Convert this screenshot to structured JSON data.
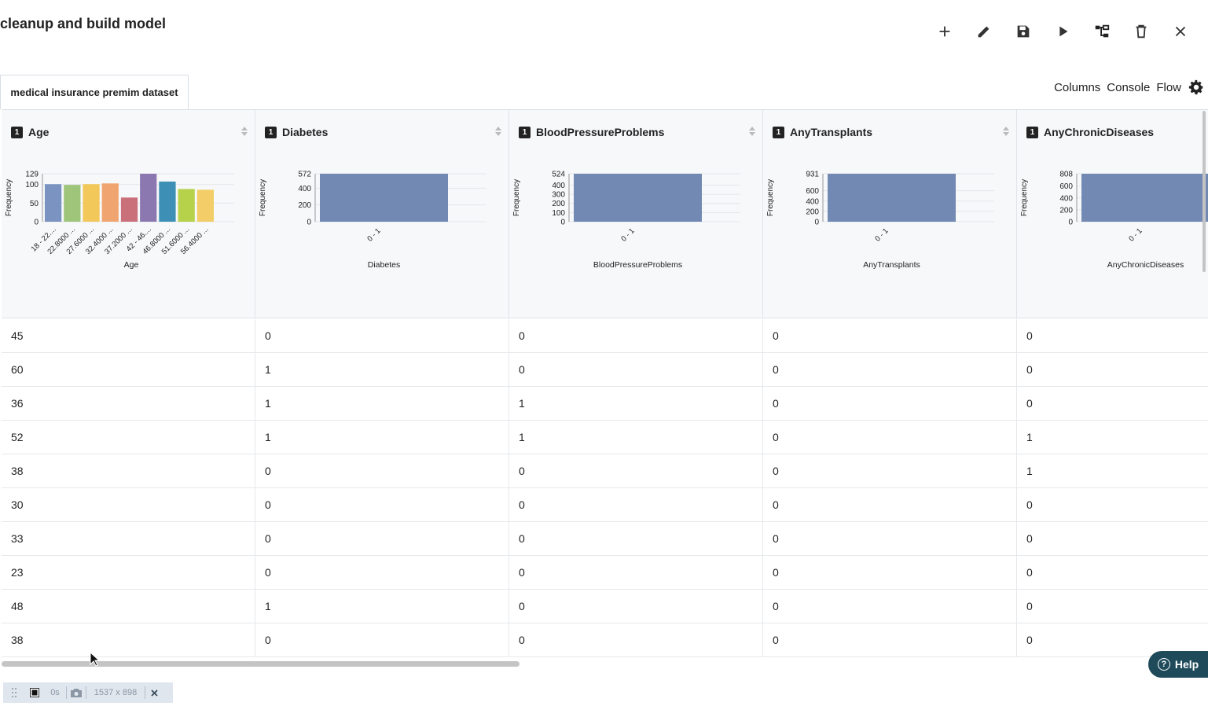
{
  "page": {
    "title": "cleanup and build model"
  },
  "toolbar": {
    "icons": [
      "plus-icon",
      "pencil-icon",
      "save-icon",
      "play-icon",
      "flow-icon",
      "trash-icon",
      "close-icon"
    ]
  },
  "tabs": [
    {
      "label": "medical insurance premim dataset"
    }
  ],
  "links": {
    "columns": "Columns",
    "console": "Console",
    "flow": "Flow"
  },
  "columns": [
    {
      "name": "Age",
      "badge": "1",
      "chart": {
        "ylabel": "Frequency",
        "xlabel": "Age",
        "ticks": [
          "129",
          "100",
          "50",
          "0"
        ],
        "categories": [
          "18 - 22....",
          "22.8000 ...",
          "27.6000 ...",
          "32.4000 ...",
          "37.2000 ...",
          "42 - 46....",
          "46.8000 ...",
          "51.6000 ...",
          "56.4000 ..."
        ]
      }
    },
    {
      "name": "Diabetes",
      "badge": "1",
      "chart": {
        "ylabel": "Frequency",
        "xlabel": "Diabetes",
        "ticks": [
          "572",
          "400",
          "200",
          "0"
        ],
        "categories": [
          "0 - 1"
        ]
      }
    },
    {
      "name": "BloodPressureProblems",
      "badge": "1",
      "chart": {
        "ylabel": "Frequency",
        "xlabel": "BloodPressureProblems",
        "ticks": [
          "524",
          "400",
          "300",
          "200",
          "100",
          "0"
        ],
        "categories": [
          "0 - 1"
        ]
      }
    },
    {
      "name": "AnyTransplants",
      "badge": "1",
      "chart": {
        "ylabel": "Frequency",
        "xlabel": "AnyTransplants",
        "ticks": [
          "931",
          "600",
          "400",
          "200",
          "0"
        ],
        "categories": [
          "0 - 1"
        ]
      }
    },
    {
      "name": "AnyChronicDiseases",
      "badge": "1",
      "chart": {
        "ylabel": "Frequency",
        "xlabel": "AnyChronicDiseases",
        "ticks": [
          "808",
          "600",
          "400",
          "200",
          "0"
        ],
        "categories": [
          "0 - 1"
        ]
      }
    }
  ],
  "chart_data": [
    {
      "type": "bar",
      "xlabel": "Age",
      "ylabel": "Frequency",
      "ylim": [
        0,
        129
      ],
      "categories": [
        "18 - 22....",
        "22.8000 ...",
        "27.6000 ...",
        "32.4000 ...",
        "37.2000 ...",
        "42 - 46....",
        "46.8000 ...",
        "51.6000 ...",
        "56.4000 ..."
      ],
      "values": [
        101,
        99,
        101,
        103,
        65,
        129,
        108,
        88,
        86
      ],
      "colors": [
        "#7b93c0",
        "#9ec57a",
        "#f2c85b",
        "#f0a470",
        "#c9707a",
        "#8c78b0",
        "#3d8fb6",
        "#b6d14a",
        "#f3cd67"
      ]
    },
    {
      "type": "bar",
      "xlabel": "Diabetes",
      "ylabel": "Frequency",
      "ylim": [
        0,
        572
      ],
      "categories": [
        "0 - 1"
      ],
      "values": [
        572
      ],
      "colors": [
        "#7289b4"
      ]
    },
    {
      "type": "bar",
      "xlabel": "BloodPressureProblems",
      "ylabel": "Frequency",
      "ylim": [
        0,
        524
      ],
      "categories": [
        "0 - 1"
      ],
      "values": [
        524
      ],
      "colors": [
        "#7289b4"
      ]
    },
    {
      "type": "bar",
      "xlabel": "AnyTransplants",
      "ylabel": "Frequency",
      "ylim": [
        0,
        931
      ],
      "categories": [
        "0 - 1"
      ],
      "values": [
        931
      ],
      "colors": [
        "#7289b4"
      ]
    },
    {
      "type": "bar",
      "xlabel": "AnyChronicDiseases",
      "ylabel": "Frequency",
      "ylim": [
        0,
        808
      ],
      "categories": [
        "0 - 1"
      ],
      "values": [
        808
      ],
      "colors": [
        "#7289b4"
      ]
    }
  ],
  "rows": [
    [
      "45",
      "0",
      "0",
      "0",
      "0"
    ],
    [
      "60",
      "1",
      "0",
      "0",
      "0"
    ],
    [
      "36",
      "1",
      "1",
      "0",
      "0"
    ],
    [
      "52",
      "1",
      "1",
      "0",
      "1"
    ],
    [
      "38",
      "0",
      "0",
      "0",
      "1"
    ],
    [
      "30",
      "0",
      "0",
      "0",
      "0"
    ],
    [
      "33",
      "0",
      "0",
      "0",
      "0"
    ],
    [
      "23",
      "0",
      "0",
      "0",
      "0"
    ],
    [
      "48",
      "1",
      "0",
      "0",
      "0"
    ],
    [
      "38",
      "0",
      "0",
      "0",
      "0"
    ]
  ],
  "help": {
    "label": "Help",
    "q": "?"
  },
  "recorder": {
    "time": "0s",
    "size": "1537 x 898"
  }
}
